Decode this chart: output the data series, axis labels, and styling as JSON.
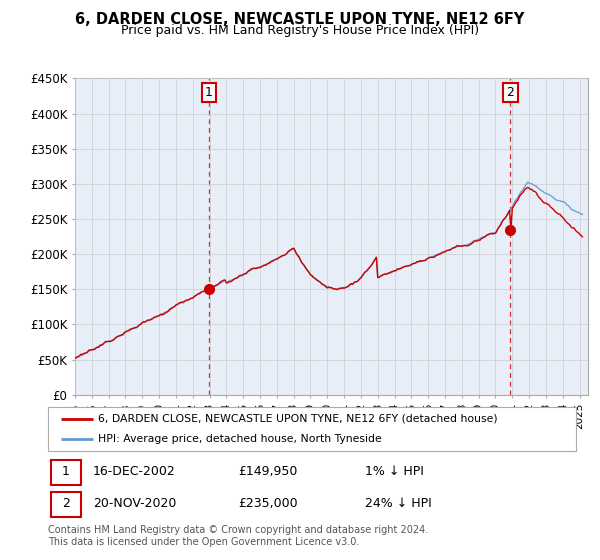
{
  "title": "6, DARDEN CLOSE, NEWCASTLE UPON TYNE, NE12 6FY",
  "subtitle": "Price paid vs. HM Land Registry's House Price Index (HPI)",
  "legend_line1": "6, DARDEN CLOSE, NEWCASTLE UPON TYNE, NE12 6FY (detached house)",
  "legend_line2": "HPI: Average price, detached house, North Tyneside",
  "footnote": "Contains HM Land Registry data © Crown copyright and database right 2024.\nThis data is licensed under the Open Government Licence v3.0.",
  "annotation1_label": "1",
  "annotation1_date": "16-DEC-2002",
  "annotation1_price": "£149,950",
  "annotation1_hpi": "1% ↓ HPI",
  "annotation2_label": "2",
  "annotation2_date": "20-NOV-2020",
  "annotation2_price": "£235,000",
  "annotation2_hpi": "24% ↓ HPI",
  "sale1_x": 2002.96,
  "sale1_y": 149950,
  "sale2_x": 2020.89,
  "sale2_y": 235000,
  "line_color_red": "#cc0000",
  "line_color_blue": "#6699cc",
  "dashed_color": "#cc0000",
  "plot_bg_color": "#e8eef8",
  "ylim": [
    0,
    450000
  ],
  "xlim": [
    1995.0,
    2025.5
  ],
  "yticks": [
    0,
    50000,
    100000,
    150000,
    200000,
    250000,
    300000,
    350000,
    400000,
    450000
  ],
  "ytick_labels": [
    "£0",
    "£50K",
    "£100K",
    "£150K",
    "£200K",
    "£250K",
    "£300K",
    "£350K",
    "£400K",
    "£450K"
  ],
  "background_color": "#ffffff",
  "grid_color": "#cccccc"
}
